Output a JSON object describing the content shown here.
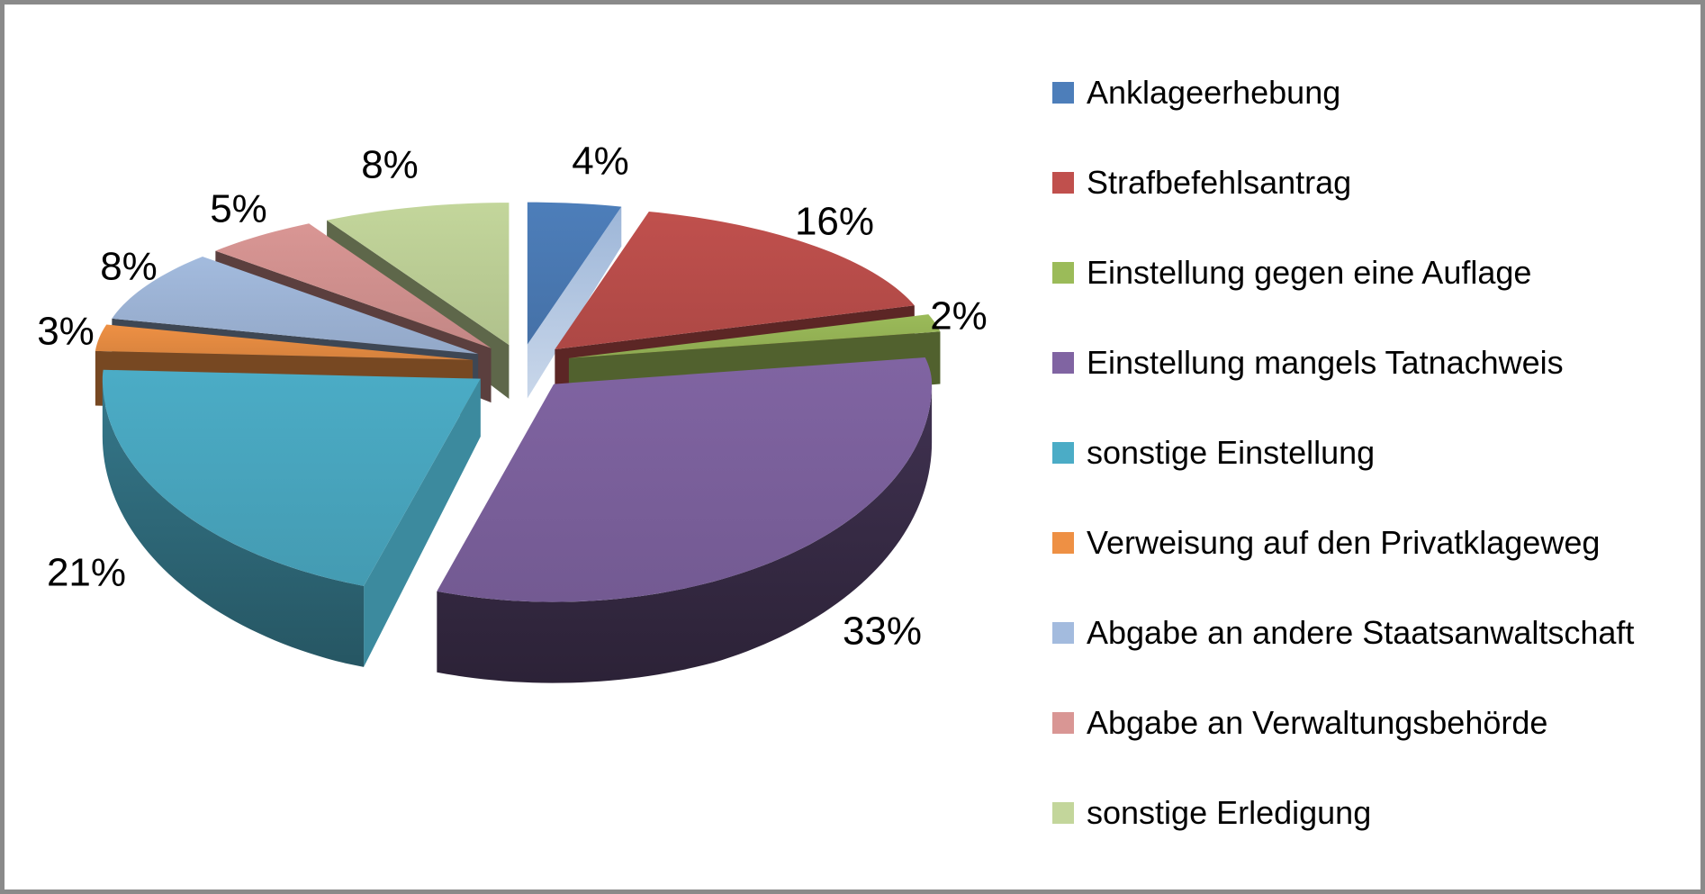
{
  "chart_data": {
    "type": "pie",
    "style": "3d-exploded-pie",
    "unit": "percent",
    "title": "",
    "categories": [
      "Anklageerhebung",
      "Strafbefehlsantrag",
      "Einstellung gegen eine Auflage",
      "Einstellung mangels Tatnachweis",
      "sonstige Einstellung",
      "Verweisung auf den Privatklageweg",
      "Abgabe an andere Staatsanwaltschaft",
      "Abgabe an Verwaltungsbehörde",
      "sonstige Erledigung"
    ],
    "values": [
      4,
      16,
      2,
      33,
      21,
      3,
      8,
      5,
      8
    ],
    "labels": [
      "4%",
      "16%",
      "2%",
      "33%",
      "21%",
      "3%",
      "8%",
      "5%",
      "8%"
    ],
    "colors": [
      "#4D7EBA",
      "#C0504D",
      "#9BBB59",
      "#8064A2",
      "#4BACC6",
      "#EE9044",
      "#A3BBDE",
      "#D99694",
      "#C3D69B"
    ],
    "start_angle_deg": 0,
    "direction": "clockwise",
    "legend_position": "right",
    "label_color": "#000000",
    "background": "#FFFFFF",
    "frame_border_color": "#8A8A8A"
  }
}
